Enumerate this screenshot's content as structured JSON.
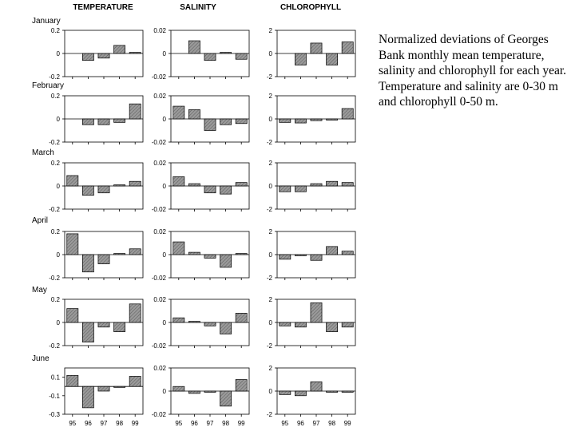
{
  "column_headers": [
    "TEMPERATURE",
    "SALINITY",
    "CHLOROPHYLL"
  ],
  "row_labels": [
    "January",
    "February",
    "March",
    "April",
    "May",
    "June"
  ],
  "caption": "Normalized deviations of Georges Bank monthly mean temperature, salinity and chlorophyll for each year. Temperature and salinity are  0-30 m  and chlorophyll 0-50 m.",
  "colors": {
    "bar_fill": "#8a8a8a",
    "bar_stroke": "#000000",
    "axis": "#000000"
  },
  "chart_data": [
    {
      "type": "bar",
      "row": "January",
      "column": "TEMPERATURE",
      "categories": [
        "95",
        "96",
        "97",
        "98",
        "99"
      ],
      "values": [
        0.0,
        -0.06,
        -0.04,
        0.07,
        0.01
      ],
      "ylim": [
        -0.2,
        0.2
      ],
      "yticks": [
        "0.2",
        "0",
        "-0.2"
      ]
    },
    {
      "type": "bar",
      "row": "January",
      "column": "SALINITY",
      "categories": [
        "95",
        "96",
        "97",
        "98",
        "99"
      ],
      "values": [
        0.0,
        0.011,
        -0.006,
        0.001,
        -0.005
      ],
      "ylim": [
        -0.02,
        0.02
      ],
      "yticks": [
        "0.02",
        "0",
        "-0.02"
      ]
    },
    {
      "type": "bar",
      "row": "January",
      "column": "CHLOROPHYLL",
      "categories": [
        "95",
        "96",
        "97",
        "98",
        "99"
      ],
      "values": [
        0.0,
        -1.0,
        0.9,
        -1.0,
        1.0
      ],
      "ylim": [
        -2,
        2
      ],
      "yticks": [
        "2",
        "0",
        "-2"
      ]
    },
    {
      "type": "bar",
      "row": "February",
      "column": "TEMPERATURE",
      "categories": [
        "95",
        "96",
        "97",
        "98",
        "99"
      ],
      "values": [
        0.0,
        -0.05,
        -0.05,
        -0.03,
        0.13
      ],
      "ylim": [
        -0.2,
        0.2
      ],
      "yticks": [
        "0.2",
        "0",
        "-0.2"
      ]
    },
    {
      "type": "bar",
      "row": "February",
      "column": "SALINITY",
      "categories": [
        "95",
        "96",
        "97",
        "98",
        "99"
      ],
      "values": [
        0.011,
        0.008,
        -0.01,
        -0.005,
        -0.004
      ],
      "ylim": [
        -0.02,
        0.02
      ],
      "yticks": [
        "0.02",
        "0",
        "-0.02"
      ]
    },
    {
      "type": "bar",
      "row": "February",
      "column": "CHLOROPHYLL",
      "categories": [
        "95",
        "96",
        "97",
        "98",
        "99"
      ],
      "values": [
        -0.3,
        -0.35,
        -0.15,
        -0.1,
        0.9
      ],
      "ylim": [
        -2,
        2
      ],
      "yticks": [
        "2",
        "0",
        "-2"
      ]
    },
    {
      "type": "bar",
      "row": "March",
      "column": "TEMPERATURE",
      "categories": [
        "95",
        "96",
        "97",
        "98",
        "99"
      ],
      "values": [
        0.09,
        -0.08,
        -0.06,
        0.01,
        0.04
      ],
      "ylim": [
        -0.2,
        0.2
      ],
      "yticks": [
        "0.2",
        "0",
        "-0.2"
      ]
    },
    {
      "type": "bar",
      "row": "March",
      "column": "SALINITY",
      "categories": [
        "95",
        "96",
        "97",
        "98",
        "99"
      ],
      "values": [
        0.008,
        0.002,
        -0.006,
        -0.007,
        0.003
      ],
      "ylim": [
        -0.02,
        0.02
      ],
      "yticks": [
        "0.02",
        "0",
        "-0.02"
      ]
    },
    {
      "type": "bar",
      "row": "March",
      "column": "CHLOROPHYLL",
      "categories": [
        "95",
        "96",
        "97",
        "98",
        "99"
      ],
      "values": [
        -0.5,
        -0.5,
        0.2,
        0.4,
        0.3
      ],
      "ylim": [
        -2,
        2
      ],
      "yticks": [
        "2",
        "0",
        "-2"
      ]
    },
    {
      "type": "bar",
      "row": "April",
      "column": "TEMPERATURE",
      "categories": [
        "95",
        "96",
        "97",
        "98",
        "99"
      ],
      "values": [
        0.18,
        -0.15,
        -0.08,
        0.01,
        0.05
      ],
      "ylim": [
        -0.2,
        0.2
      ],
      "yticks": [
        "0.2",
        "0",
        "-0.2"
      ]
    },
    {
      "type": "bar",
      "row": "April",
      "column": "SALINITY",
      "categories": [
        "95",
        "96",
        "97",
        "98",
        "99"
      ],
      "values": [
        0.011,
        0.002,
        -0.003,
        -0.011,
        0.001
      ],
      "ylim": [
        -0.02,
        0.02
      ],
      "yticks": [
        "0.02",
        "0",
        "-0.02"
      ]
    },
    {
      "type": "bar",
      "row": "April",
      "column": "CHLOROPHYLL",
      "categories": [
        "95",
        "96",
        "97",
        "98",
        "99"
      ],
      "values": [
        -0.4,
        -0.1,
        -0.5,
        0.7,
        0.3
      ],
      "ylim": [
        -2,
        2
      ],
      "yticks": [
        "2",
        "0",
        "-2"
      ]
    },
    {
      "type": "bar",
      "row": "May",
      "column": "TEMPERATURE",
      "categories": [
        "95",
        "96",
        "97",
        "98",
        "99"
      ],
      "values": [
        0.12,
        -0.17,
        -0.04,
        -0.08,
        0.16
      ],
      "ylim": [
        -0.2,
        0.2
      ],
      "yticks": [
        "0.2",
        "0",
        "-0.2"
      ]
    },
    {
      "type": "bar",
      "row": "May",
      "column": "SALINITY",
      "categories": [
        "95",
        "96",
        "97",
        "98",
        "99"
      ],
      "values": [
        0.004,
        0.001,
        -0.003,
        -0.01,
        0.008
      ],
      "ylim": [
        -0.02,
        0.02
      ],
      "yticks": [
        "0.02",
        "0",
        "-0.02"
      ]
    },
    {
      "type": "bar",
      "row": "May",
      "column": "CHLOROPHYLL",
      "categories": [
        "95",
        "96",
        "97",
        "98",
        "99"
      ],
      "values": [
        -0.3,
        -0.4,
        1.7,
        -0.8,
        -0.4
      ],
      "ylim": [
        -2,
        2
      ],
      "yticks": [
        "2",
        "0",
        "-2"
      ]
    },
    {
      "type": "bar",
      "row": "June",
      "column": "TEMPERATURE",
      "categories": [
        "95",
        "96",
        "97",
        "98",
        "99"
      ],
      "values": [
        0.12,
        -0.23,
        -0.05,
        -0.01,
        0.11
      ],
      "ylim": [
        -0.3,
        0.2
      ],
      "yticks": [
        "0.1",
        "-0.1",
        "-0.3"
      ]
    },
    {
      "type": "bar",
      "row": "June",
      "column": "SALINITY",
      "categories": [
        "95",
        "96",
        "97",
        "98",
        "99"
      ],
      "values": [
        0.004,
        -0.002,
        -0.001,
        -0.013,
        0.01
      ],
      "ylim": [
        -0.02,
        0.02
      ],
      "yticks": [
        "0.02",
        "0",
        "-0.02"
      ]
    },
    {
      "type": "bar",
      "row": "June",
      "column": "CHLOROPHYLL",
      "categories": [
        "95",
        "96",
        "97",
        "98",
        "99"
      ],
      "values": [
        -0.3,
        -0.4,
        0.8,
        -0.1,
        -0.1
      ],
      "ylim": [
        -2,
        2
      ],
      "yticks": [
        "2",
        "0",
        "-2"
      ]
    }
  ]
}
